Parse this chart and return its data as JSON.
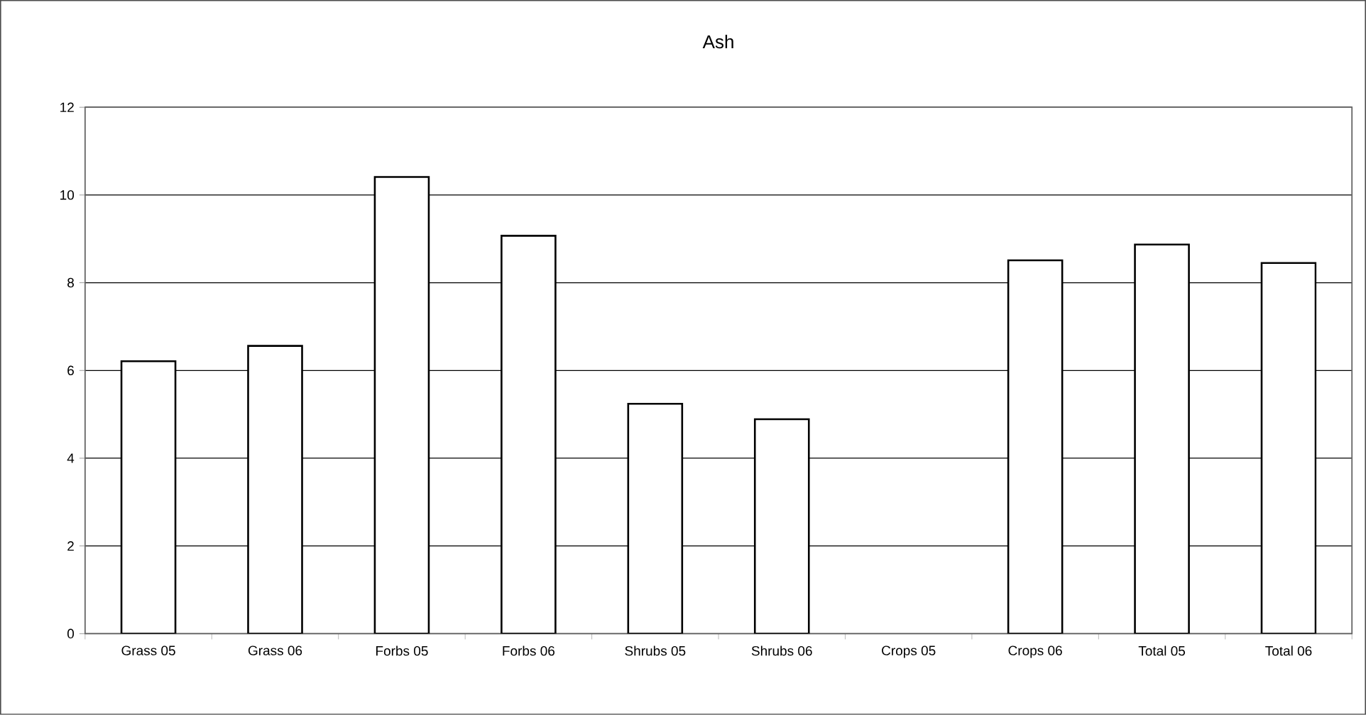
{
  "chart_data": {
    "type": "bar",
    "title": "Ash",
    "categories": [
      "Grass 05",
      "Grass 06",
      "Forbs 05",
      "Forbs 06",
      "Shrubs 05",
      "Shrubs 06",
      "Crops 05",
      "Crops 06",
      "Total 05",
      "Total 06"
    ],
    "values": [
      6.21,
      6.56,
      10.41,
      9.07,
      5.24,
      4.89,
      null,
      8.51,
      8.87,
      8.45
    ],
    "color": "#ffffff",
    "ylim": [
      0,
      12
    ],
    "yticks": [
      0,
      2,
      4,
      6,
      8,
      10,
      12
    ],
    "grid": "y"
  }
}
